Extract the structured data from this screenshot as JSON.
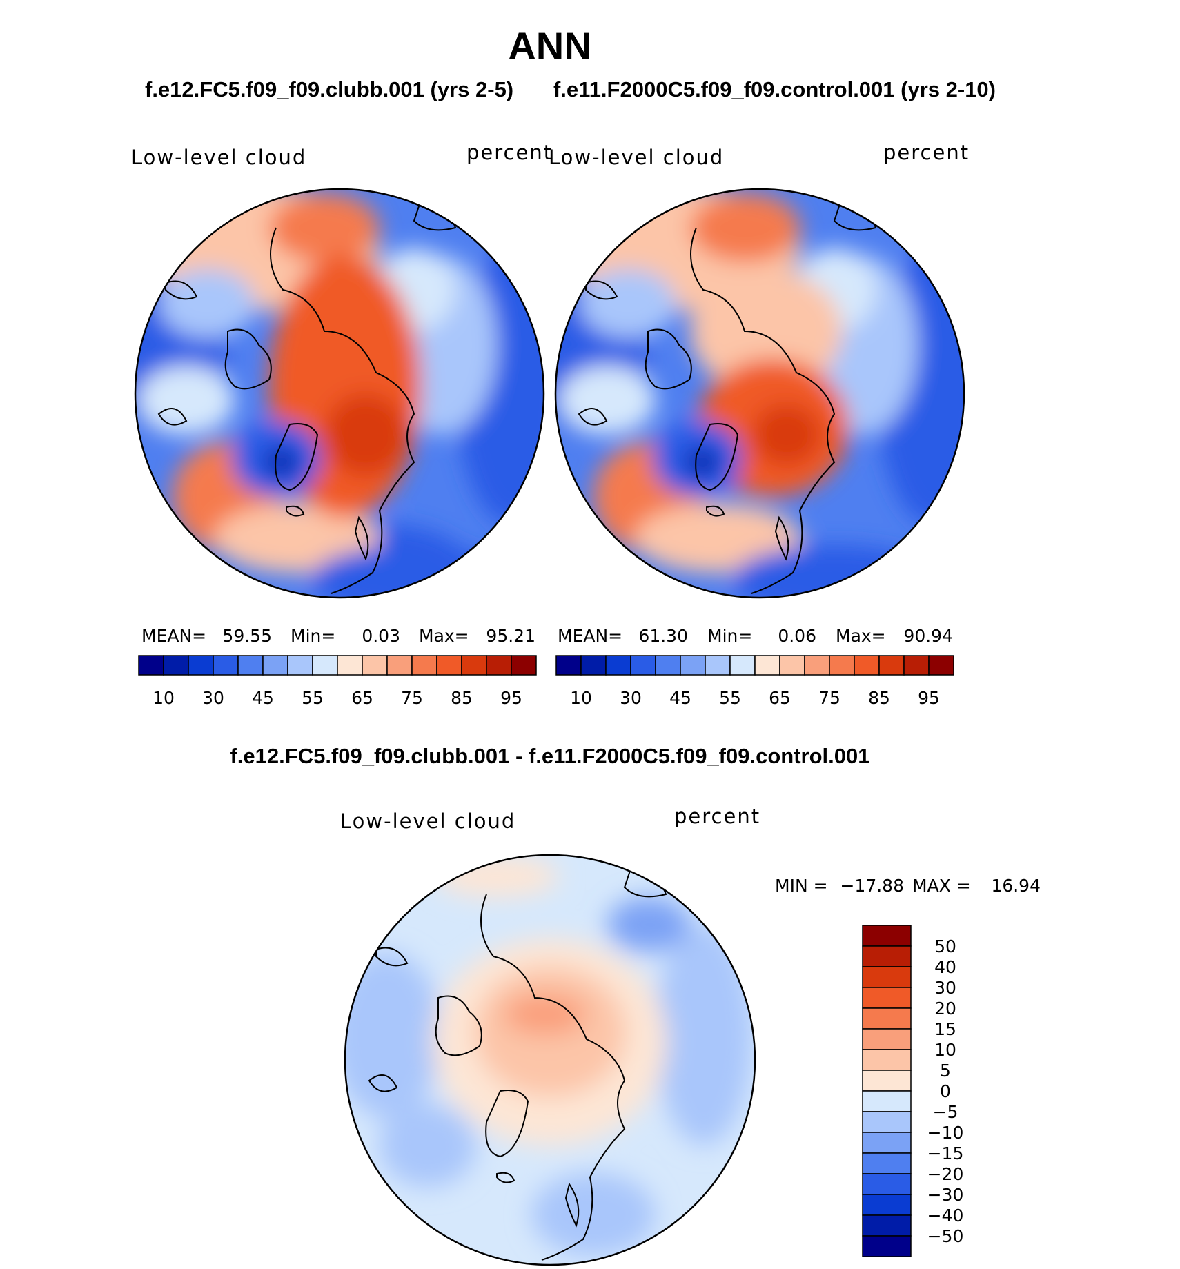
{
  "figure": {
    "title": "ANN",
    "subtitle_left": "f.e12.FC5.f09_f09.clubb.001 (yrs 2-5)",
    "subtitle_right": "f.e11.F2000C5.f09_f09.control.001 (yrs 2-10)",
    "diff_title": "f.e12.FC5.f09_f09.clubb.001 - f.e11.F2000C5.f09_f09.control.001"
  },
  "chart_data": [
    {
      "type": "heatmap",
      "projection": "north-polar-stereographic",
      "variable": "Low-level cloud",
      "units": "percent",
      "stats": {
        "mean_label": "MEAN=",
        "mean": "59.55",
        "min_label": "Min=",
        "min": "0.03",
        "max_label": "Max=",
        "max": "95.21"
      },
      "colorbar": {
        "orientation": "horizontal",
        "tick_labels": [
          "10",
          "30",
          "45",
          "55",
          "65",
          "75",
          "85",
          "95"
        ],
        "colors": [
          "#00008a",
          "#001ca8",
          "#0a3cd2",
          "#2a5ce6",
          "#4f7ff0",
          "#7ba2f5",
          "#a9c6fb",
          "#d6e8fc",
          "#fde6d5",
          "#fcc5a8",
          "#f99f7b",
          "#f57a4d",
          "#f05a28",
          "#d93a0d",
          "#b81e05",
          "#8c0000"
        ]
      }
    },
    {
      "type": "heatmap",
      "projection": "north-polar-stereographic",
      "variable": "Low-level cloud",
      "units": "percent",
      "stats": {
        "mean_label": "MEAN=",
        "mean": "61.30",
        "min_label": "Min=",
        "min": "0.06",
        "max_label": "Max=",
        "max": "90.94"
      },
      "colorbar": {
        "orientation": "horizontal",
        "tick_labels": [
          "10",
          "30",
          "45",
          "55",
          "65",
          "75",
          "85",
          "95"
        ],
        "colors": [
          "#00008a",
          "#001ca8",
          "#0a3cd2",
          "#2a5ce6",
          "#4f7ff0",
          "#7ba2f5",
          "#a9c6fb",
          "#d6e8fc",
          "#fde6d5",
          "#fcc5a8",
          "#f99f7b",
          "#f57a4d",
          "#f05a28",
          "#d93a0d",
          "#b81e05",
          "#8c0000"
        ]
      }
    },
    {
      "type": "heatmap",
      "projection": "north-polar-stereographic",
      "variable": "Low-level cloud",
      "units": "percent",
      "stats": {
        "min_label": "MIN =",
        "min": "−17.88",
        "max_label": "MAX =",
        "max": "16.94"
      },
      "colorbar": {
        "orientation": "vertical",
        "tick_labels": [
          "50",
          "40",
          "30",
          "20",
          "15",
          "10",
          "5",
          "0",
          "−5",
          "−10",
          "−15",
          "−20",
          "−30",
          "−40",
          "−50"
        ],
        "colors": [
          "#8c0000",
          "#b81e05",
          "#d93a0d",
          "#f05a28",
          "#f57a4d",
          "#f99f7b",
          "#fcc5a8",
          "#fde6d5",
          "#d6e8fc",
          "#a9c6fb",
          "#7ba2f5",
          "#4f7ff0",
          "#2a5ce6",
          "#0a3cd2",
          "#001ca8",
          "#00008a"
        ]
      }
    }
  ]
}
